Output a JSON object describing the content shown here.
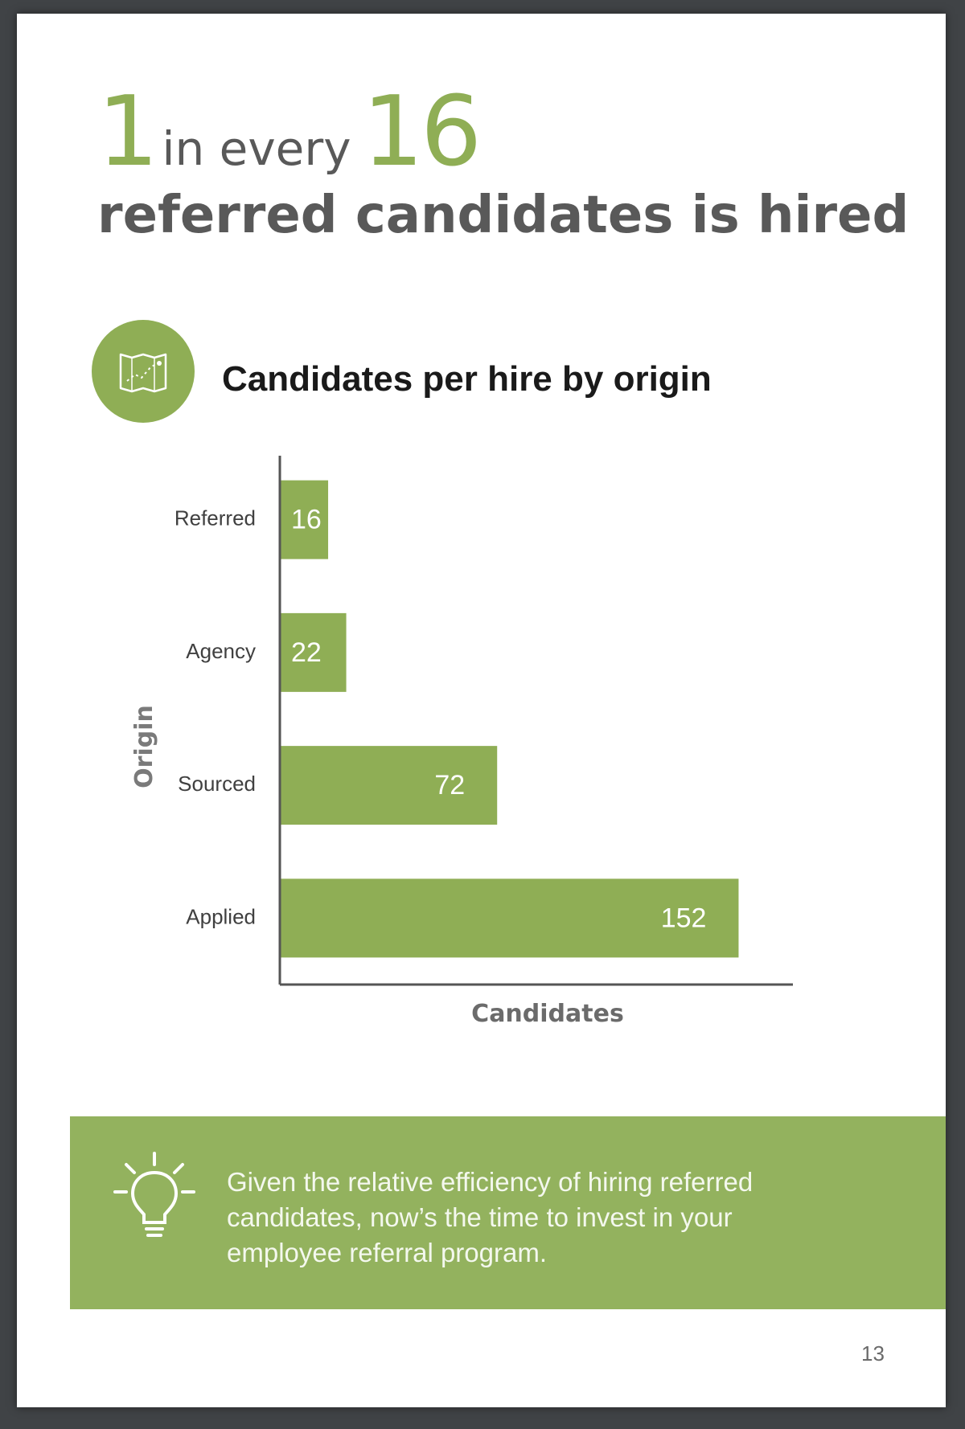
{
  "headline": {
    "num_a": "1",
    "middle": "in every",
    "num_b": "16",
    "line2": "referred candidates is hired"
  },
  "chart_title": "Candidates per hire by origin",
  "tip": "Given the relative efficiency of hiring referred candidates, now’s the time to invest in your employee referral program.",
  "page_number": "13",
  "colors": {
    "accent": "#8fae55",
    "banner": "#93b25e",
    "axis": "#555555",
    "text": "#595959"
  },
  "icons": {
    "chart_badge": "map-icon",
    "tip": "lightbulb-icon"
  },
  "chart_data": {
    "type": "bar",
    "orientation": "horizontal",
    "title": "Candidates per hire by origin",
    "xlabel": "Candidates",
    "ylabel": "Origin",
    "categories": [
      "Referred",
      "Agency",
      "Sourced",
      "Applied"
    ],
    "values": [
      16,
      22,
      72,
      152
    ],
    "xlim": [
      0,
      170
    ],
    "grid": false,
    "legend": "none",
    "data_labels": true
  }
}
